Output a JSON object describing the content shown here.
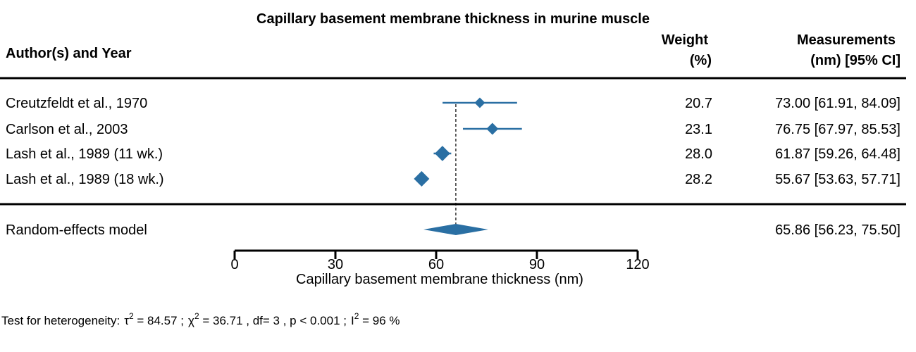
{
  "chart_data": {
    "type": "forest",
    "title": "Capillary basement membrane thickness in murine muscle",
    "columns": {
      "study": "Author(s) and Year",
      "weight_line1": "Weight",
      "weight_line2": "(%)",
      "measure_line1": "Measurements",
      "measure_line2": "(nm) [95% CI]"
    },
    "studies": [
      {
        "label": "Creutzfeldt et al., 1970",
        "estimate": 73.0,
        "ci_low": 61.91,
        "ci_high": 84.09,
        "weight": 20.7,
        "weight_text": "20.7",
        "measure_text": "73.00 [61.91, 84.09]"
      },
      {
        "label": "Carlson et al., 2003",
        "estimate": 76.75,
        "ci_low": 67.97,
        "ci_high": 85.53,
        "weight": 23.1,
        "weight_text": "23.1",
        "measure_text": "76.75 [67.97, 85.53]"
      },
      {
        "label": "Lash et al., 1989 (11 wk.)",
        "estimate": 61.87,
        "ci_low": 59.26,
        "ci_high": 64.48,
        "weight": 28.0,
        "weight_text": "28.0",
        "measure_text": "61.87 [59.26, 64.48]"
      },
      {
        "label": "Lash et al., 1989 (18 wk.)",
        "estimate": 55.67,
        "ci_low": 53.63,
        "ci_high": 57.71,
        "weight": 28.2,
        "weight_text": "28.2",
        "measure_text": "55.67 [53.63, 57.71]"
      }
    ],
    "summary": {
      "label": "Random-effects model",
      "estimate": 65.86,
      "ci_low": 56.23,
      "ci_high": 75.5,
      "measure_text": "65.86 [56.23, 75.50]"
    },
    "xaxis": {
      "label": "Capillary basement membrane thickness (nm)",
      "ticks": [
        0,
        30,
        60,
        90,
        120
      ],
      "range": [
        0,
        120
      ]
    },
    "heterogeneity": {
      "prefix": "Test for heterogeneity:",
      "tau2_value": " = 84.57 ;",
      "chi2_value": " = 36.71 , df= 3 ,  p < 0.001 ;",
      "i2_value": " = 96 %"
    },
    "colors": {
      "marker": "#2a6fa3",
      "text": "#000000"
    }
  }
}
